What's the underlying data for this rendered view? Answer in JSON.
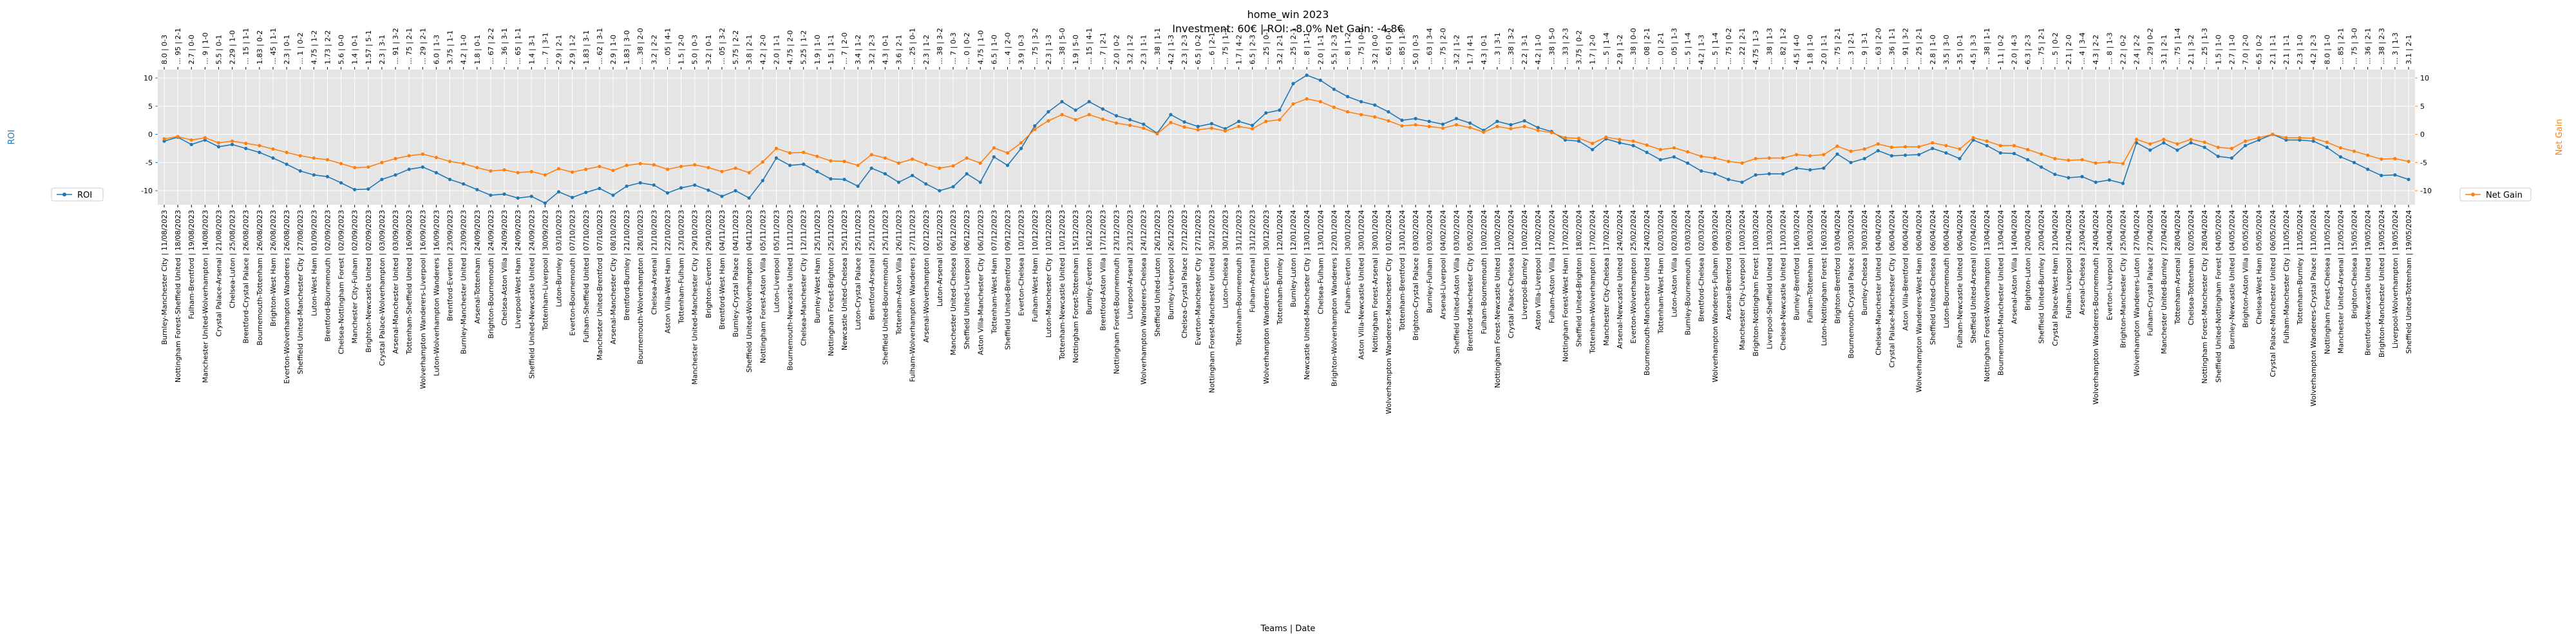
{
  "chart_data": {
    "type": "line",
    "title_line1": "home_win 2023",
    "title_line2": "Investment: 60€ | ROI: -8.0% Net Gain: -4.8€",
    "xlabel": "Teams | Date",
    "ylabel_left": "ROI",
    "ylabel_right": "Net Gain",
    "ylim_left": [
      -12.5,
      11.5
    ],
    "ylim_right": [
      -12.5,
      11.5
    ],
    "yticks_left": [
      -10,
      -5,
      0,
      5,
      10
    ],
    "yticks_right": [
      -10,
      -5,
      0,
      5,
      10
    ],
    "grid": true,
    "legend_left": "bottom-left",
    "legend_right": "bottom-right",
    "colors": {
      "roi": "#1f77b4",
      "net_gain": "#ff7f0e",
      "plot_bg": "#e5e5e5",
      "grid": "#ffffff"
    },
    "categories": [
      "Burnley-Manchester City | 11/08/2023",
      "Nottingham Forest-Sheffield United | 18/08/2023",
      "Fulham-Brentford | 19/08/2023",
      "Manchester United-Wolverhampton | 14/08/2023",
      "Crystal Palace-Arsenal | 21/08/2023",
      "Chelsea-Luton | 25/08/2023",
      "Brentford-Crystal Palace | 26/08/2023",
      "Bournemouth-Tottenham | 26/08/2023",
      "Brighton-West Ham | 26/08/2023",
      "Everton-Wolverhampton Wanderers | 26/08/2023",
      "Sheffield United-Manchester City | 27/08/2023",
      "Luton-West Ham | 01/09/2023",
      "Brentford-Bournemouth | 02/09/2023",
      "Chelsea-Nottingham Forest | 02/09/2023",
      "Manchester City-Fulham | 02/09/2023",
      "Brighton-Newcastle United | 02/09/2023",
      "Crystal Palace-Wolverhampton | 03/09/2023",
      "Arsenal-Manchester United | 03/09/2023",
      "Tottenham-Sheffield United | 16/09/2023",
      "Wolverhampton Wanderers-Liverpool | 16/09/2023",
      "Luton-Wolverhampton Wanderers | 16/09/2023",
      "Brentford-Everton | 23/09/2023",
      "Burnley-Manchester United | 23/09/2023",
      "Arsenal-Tottenham | 24/09/2023",
      "Brighton-Bournemouth | 24/09/2023",
      "Chelsea-Aston Villa | 24/09/2023",
      "Liverpool-West Ham | 24/09/2023",
      "Sheffield United-Newcastle United | 24/09/2023",
      "Tottenham-Liverpool | 30/09/2023",
      "Luton-Burnley | 03/10/2023",
      "Everton-Bournemouth | 07/10/2023",
      "Fulham-Sheffield United | 07/10/2023",
      "Manchester United-Brentford | 07/10/2023",
      "Arsenal-Manchester City | 08/10/2023",
      "Brentford-Burnley | 21/10/2023",
      "Bournemouth-Wolverhampton | 28/10/2023",
      "Chelsea-Arsenal | 21/10/2023",
      "Aston Villa-West Ham | 22/10/2023",
      "Tottenham-Fulham | 23/10/2023",
      "Manchester United-Manchester City | 29/10/2023",
      "Brighton-Everton | 29/10/2023",
      "Brentford-West Ham | 04/11/2023",
      "Burnley-Crystal Palace | 04/11/2023",
      "Sheffield United-Wolverhampton | 04/11/2023",
      "Nottingham Forest-Aston Villa | 05/11/2023",
      "Luton-Liverpool | 05/11/2023",
      "Bournemouth-Newcastle United | 11/11/2023",
      "Chelsea-Manchester City | 12/11/2023",
      "Burnley-West Ham | 25/11/2023",
      "Nottingham Forest-Brighton | 25/11/2023",
      "Newcastle United-Chelsea | 25/11/2023",
      "Luton-Crystal Palace | 25/11/2023",
      "Brentford-Arsenal | 25/11/2023",
      "Sheffield United-Bournemouth | 25/11/2023",
      "Tottenham-Aston Villa | 26/11/2023",
      "Fulham-Wolverhampton Wanderers | 27/11/2023",
      "Arsenal-Wolverhampton | 02/12/2023",
      "Luton-Arsenal | 05/12/2023",
      "Manchester United-Chelsea | 06/12/2023",
      "Sheffield United-Liverpool | 06/12/2023",
      "Aston Villa-Manchester City | 06/12/2023",
      "Tottenham-West Ham | 07/12/2023",
      "Sheffield United-Brentford | 09/12/2023",
      "Everton-Chelsea | 10/12/2023",
      "Fulham-West Ham | 10/12/2023",
      "Luton-Manchester City | 10/12/2023",
      "Tottenham-Newcastle United | 10/12/2023",
      "Nottingham Forest-Tottenham | 15/12/2023",
      "Burnley-Everton | 16/12/2023",
      "Brentford-Aston Villa | 17/12/2023",
      "Nottingham Forest-Bournemouth | 23/12/2023",
      "Liverpool-Arsenal | 23/12/2023",
      "Wolverhampton Wanderers-Chelsea | 24/12/2023",
      "Sheffield United-Luton | 26/12/2023",
      "Burnley-Liverpool | 26/12/2023",
      "Chelsea-Crystal Palace | 27/12/2023",
      "Everton-Manchester City | 27/12/2023",
      "Nottingham Forest-Manchester United | 30/12/2023",
      "Luton-Chelsea | 30/12/2023",
      "Tottenham-Bournemouth | 31/12/2023",
      "Fulham-Arsenal | 31/12/2023",
      "Wolverhampton Wanderers-Everton | 30/12/2023",
      "Tottenham-Burnley | 12/01/2024",
      "Burnley-Luton | 12/01/2024",
      "Newcastle United-Manchester City | 13/01/2024",
      "Chelsea-Fulham | 13/01/2024",
      "Brighton-Wolverhampton Wanderers | 22/01/2024",
      "Fulham-Everton | 30/01/2024",
      "Aston Villa-Newcastle United | 30/01/2024",
      "Nottingham Forest-Arsenal | 30/01/2024",
      "Wolverhampton Wanderers-Manchester City | 01/02/2024",
      "Tottenham-Brentford | 31/01/2024",
      "Brighton-Crystal Palace | 03/02/2024",
      "Burnley-Fulham | 03/02/2024",
      "Arsenal-Liverpool | 04/02/2024",
      "Sheffield United-Aston Villa | 03/02/2024",
      "Brentford-Manchester City | 05/02/2024",
      "Fulham-Bournemouth | 10/02/2024",
      "Nottingham Forest-Newcastle United | 10/02/2024",
      "Crystal Palace-Chelsea | 12/02/2024",
      "Liverpool-Burnley | 10/02/2024",
      "Aston Villa-Liverpool | 12/02/2024",
      "Fulham-Aston Villa | 17/02/2024",
      "Nottingham Forest-West Ham | 17/02/2024",
      "Sheffield United-Brighton | 18/02/2024",
      "Tottenham-Wolverhampton | 17/02/2024",
      "Manchester City-Chelsea | 17/02/2024",
      "Arsenal-Newcastle United | 24/02/2024",
      "Everton-Wolverhampton | 25/02/2024",
      "Bournemouth-Manchester United | 24/02/2024",
      "Tottenham-West Ham | 02/03/2024",
      "Luton-Aston Villa | 02/03/2024",
      "Burnley-Bournemouth | 03/03/2024",
      "Brentford-Chelsea | 02/03/2024",
      "Wolverhampton Wanderers-Fulham | 09/03/2024",
      "Arsenal-Brentford | 09/03/2024",
      "Manchester City-Liverpool | 10/03/2024",
      "Brighton-Nottingham Forest | 10/03/2024",
      "Liverpool-Sheffield United | 13/03/2024",
      "Chelsea-Newcastle United | 11/03/2024",
      "Burnley-Brentford | 16/03/2024",
      "Fulham-Tottenham | 16/03/2024",
      "Luton-Nottingham Forest | 16/03/2024",
      "Brighton-Brentford | 03/04/2024",
      "Bournemouth-Crystal Palace | 30/03/2024",
      "Burnley-Chelsea | 30/03/2024",
      "Chelsea-Manchester United | 04/04/2024",
      "Crystal Palace-Manchester City | 06/04/2024",
      "Aston Villa-Brentford | 06/04/2024",
      "Wolverhampton Wanderers-West Ham | 06/04/2024",
      "Sheffield United-Chelsea | 06/04/2024",
      "Luton-Bournemouth | 06/04/2024",
      "Fulham-Newcastle United | 06/04/2024",
      "Sheffield United-Arsenal | 07/04/2024",
      "Nottingham Forest-Wolverhampton | 13/04/2024",
      "Bournemouth-Manchester United | 13/04/2024",
      "Arsenal-Aston Villa | 14/04/2024",
      "Brighton-Luton | 20/04/2024",
      "Sheffield United-Burnley | 20/04/2024",
      "Crystal Palace-West Ham | 21/04/2024",
      "Fulham-Liverpool | 21/04/2024",
      "Arsenal-Chelsea | 23/04/2024",
      "Wolverhampton Wanderers-Bournemouth | 24/04/2024",
      "Everton-Liverpool | 24/04/2024",
      "Brighton-Manchester City | 25/04/2024",
      "Wolverhampton Wanderers-Luton | 27/04/2024",
      "Fulham-Crystal Palace | 27/04/2024",
      "Manchester United-Burnley | 27/04/2024",
      "Tottenham-Arsenal | 28/04/2024",
      "Chelsea-Tottenham | 02/05/2024",
      "Nottingham Forest-Manchester City | 28/04/2024",
      "Sheffield United-Nottingham Forest | 04/05/2024",
      "Burnley-Newcastle United | 04/05/2024",
      "Brighton-Aston Villa | 05/05/2024",
      "Chelsea-West Ham | 05/05/2024",
      "Crystal Palace-Manchester United | 06/05/2024",
      "Fulham-Manchester City | 11/05/2024",
      "Tottenham-Burnley | 11/05/2024",
      "Wolverhampton Wanderers-Crystal Palace | 11/05/2024",
      "Nottingham Forest-Chelsea | 11/05/2024",
      "Manchester United-Arsenal | 12/05/2024",
      "Brighton-Chelsea | 15/05/2024",
      "Brentford-Newcastle United | 19/05/2024",
      "Brighton-Manchester United | 19/05/2024",
      "Liverpool-Wolverhampton | 19/05/2024",
      "Sheffield United-Tottenham | 19/05/2024"
    ],
    "tick_labels_top": [
      "8.0 | 0-3",
      "... 95 | 2-1",
      "2.7 | 0-0",
      "... 9 | 1-0",
      "5.5 | 0-1",
      "2.29 | 1-0",
      "... 15 | 1-1",
      "1.83 | 0-2",
      "... 45 | 1-1",
      "2.3 | 0-1",
      "... 1 | 0-2",
      "4.75 | 1-2",
      "1.73 | 2-2",
      "5.6 | 0-0",
      "1.4 | 0-1",
      "1.57 | 5-1",
      "2.3 | 3-1",
      "... 91 | 3-2",
      "... 75 | 2-1",
      "... 29 | 2-1",
      "6.0 | 1-3",
      "3.75 | 1-1",
      "4.2 | 1-0",
      "1.8 | 0-1",
      "... 67 | 2-2",
      "... 36 | 3-1",
      "... 65 | 1-1",
      "1.4 | 3-1",
      "... 7 | 3-1",
      "2.9 | 2-1",
      "2.9 | 1-2",
      "1.83 | 3-1",
      "... 62 | 3-1",
      "2.9 | 1-0",
      "1.83 | 3-0",
      "... 38 | 2-0",
      "3.2 | 2-2",
      "... 05 | 4-1",
      "1.5 | 2-0",
      "5.0 | 0-3",
      "3.2 | 0-1",
      "... 05 | 3-2",
      "5.75 | 2-2",
      "3.8 | 2-1",
      "4.2 | 2-0",
      "2.0 | 1-1",
      "4.75 | 2-0",
      "5.25 | 1-2",
      "1.9 | 1-0",
      "1.5 | 1-1",
      "... 7 | 2-0",
      "3.4 | 1-2",
      "3.2 | 2-3",
      "4.3 | 0-1",
      "3.6 | 2-1",
      "... 25 | 0-1",
      "2.3 | 1-2",
      "... 38 | 3-2",
      "... 7 | 0-3",
      "... 0 | 0-2",
      "4.75 | 1-0",
      "6.5 | 1-0",
      "... 4 | 2-0",
      "3.9 | 0-3",
      "... 75 | 3-2",
      "2.3 | 1-3",
      "... 38 | 5-0",
      "1.9 | 5-0",
      "... 15 | 4-1",
      "... 7 | 2-1",
      "2.0 | 0-2",
      "3.2 | 1-2",
      "2.3 | 1-1",
      "... 38 | 1-1",
      "4.2 | 1-3",
      "2.3 | 2-3",
      "6.5 | 0-2",
      "... 6 | 2-1",
      "... 75 | 1-3",
      "1.7 | 4-2",
      "6.5 | 2-3",
      "... 25 | 0-1",
      "3.2 | 2-1",
      "... 25 | 2-1",
      "... 8 | 1-1",
      "2.0 | 1-1",
      "5.5 | 2-3",
      "... 8 | 1-2",
      "... 75 | 0-0",
      "3.2 | 0-0",
      "... 65 | 0-0",
      "... 85 | 1-3",
      "5.0 | 0-3",
      "... 63 | 3-4",
      "... 75 | 2-0",
      "3.2 | 1-2",
      "1.7 | 4-1",
      "4.3 | 0-1",
      "... 3 | 3-1",
      "... 38 | 3-2",
      "2.2 | 3-1",
      "4.2 | 1-0",
      "... 38 | 5-0",
      "... 33 | 2-3",
      "3.75 | 0-2",
      "1.7 | 2-0",
      "... 5 | 1-4",
      "2.9 | 1-2",
      "... 38 | 0-0",
      "... 08 | 2-1",
      "... 0 | 2-1",
      "... 05 | 1-3",
      "... 5 | 1-4",
      "4.2 | 1-3",
      "... 5 | 1-4",
      "... 75 | 0-2",
      "... 22 | 2-1",
      "4.75 | 1-3",
      "... 38 | 1-3",
      "... 82 | 1-2",
      "4.5 | 4-0",
      "1.8 | 1-0",
      "2.0 | 1-1",
      "... 75 | 2-1",
      "... 3 | 2-1",
      "... 9 | 3-1",
      "... 63 | 2-0",
      "... 36 | 1-1",
      "... 91 | 3-2",
      "... 25 | 2-1",
      "2.8 | 1-0",
      "3.5 | 3-0",
      "3.5 | 0-1",
      "4.5 | 3-3",
      "... 38 | 1-1",
      "1.1 | 0-2",
      "2.0 | 4-3",
      "6.3 | 2-3",
      "... 75 | 2-1",
      "... 5 | 0-2",
      "2.1 | 2-0",
      "... 4 | 3-4",
      "4.3 | 2-2",
      "... 8 | 1-3",
      "2.2 | 0-2",
      "2.4 | 2-2",
      "... 29 | 0-2",
      "3.1 | 2-1",
      "... 75 | 1-4",
      "2.1 | 3-2",
      "... 25 | 1-3",
      "1.5 | 1-0",
      "2.7 | 1-0",
      "7.0 | 2-0",
      "6.5 | 0-2",
      "2.1 | 1-1",
      "2.1 | 1-1",
      "2.3 | 1-0",
      "4.2 | 2-3",
      "8.0 | 1-0",
      "... 85 | 2-1",
      "... 75 | 3-0",
      "... 36 | 2-1",
      "... 38 | 2-3",
      "... 3 | 1-3",
      "3.1 | 2-1",
      "... 15 | 0-2",
      "... 3 | 1-2",
      "... 17 | 2-0",
      "... 0 | 0-3"
    ],
    "series": [
      {
        "name": "ROI",
        "axis": "left",
        "color": "#1f77b4",
        "values": [
          -1.2,
          -0.5,
          -1.8,
          -1.0,
          -2.2,
          -1.8,
          -2.5,
          -3.2,
          -4.2,
          -5.3,
          -6.5,
          -7.2,
          -7.5,
          -8.6,
          -9.8,
          -9.7,
          -8.0,
          -7.2,
          -6.2,
          -5.8,
          -6.8,
          -8.0,
          -8.8,
          -9.8,
          -10.8,
          -10.6,
          -11.3,
          -11.0,
          -12.2,
          -10.2,
          -11.2,
          -10.3,
          -9.6,
          -10.8,
          -9.2,
          -8.6,
          -9.0,
          -10.4,
          -9.5,
          -9.0,
          -9.9,
          -11.0,
          -10.0,
          -11.3,
          -8.2,
          -4.2,
          -5.5,
          -5.3,
          -6.6,
          -7.9,
          -8.0,
          -9.2,
          -6.0,
          -7.0,
          -8.5,
          -7.3,
          -8.8,
          -10.0,
          -9.3,
          -7.0,
          -8.5,
          -4.0,
          -5.5,
          -2.5,
          1.5,
          4.0,
          5.8,
          4.3,
          5.8,
          4.5,
          3.3,
          2.6,
          1.8,
          0.2,
          3.5,
          2.2,
          1.4,
          1.9,
          1.0,
          2.3,
          1.6,
          3.8,
          4.3,
          9.0,
          10.5,
          9.6,
          8.0,
          6.7,
          5.8,
          5.2,
          4.0,
          2.5,
          2.8,
          2.3,
          1.8,
          2.8,
          2.0,
          0.7,
          2.3,
          1.7,
          2.4,
          1.2,
          0.5,
          -1.0,
          -1.2,
          -2.7,
          -0.8,
          -1.5,
          -2.0,
          -3.2,
          -4.5,
          -4.0,
          -5.1,
          -6.5,
          -7.0,
          -8.0,
          -8.5,
          -7.2,
          -7.0,
          -7.0,
          -6.0,
          -6.3,
          -6.0,
          -3.5,
          -5.0,
          -4.3,
          -2.9,
          -3.8,
          -3.7,
          -3.6,
          -2.5,
          -3.3,
          -4.3,
          -1.0,
          -2.0,
          -3.3,
          -3.4,
          -4.5,
          -5.8,
          -7.1,
          -7.7,
          -7.5,
          -8.5,
          -8.1,
          -8.7,
          -1.5,
          -2.8,
          -1.5,
          -2.8,
          -1.5,
          -2.3,
          -3.9,
          -4.2,
          -2.0,
          -1.0,
          0.0,
          -1.0,
          -1.0,
          -1.2,
          -2.3,
          -4.0,
          -5.0,
          -6.2,
          -7.3,
          -7.2,
          -8.0
        ],
        "show_markers": true
      },
      {
        "name": "Net Gain",
        "axis": "right",
        "color": "#ff7f0e",
        "values": [
          -0.8,
          -0.4,
          -1.0,
          -0.6,
          -1.5,
          -1.2,
          -1.6,
          -2.0,
          -2.6,
          -3.2,
          -3.8,
          -4.2,
          -4.5,
          -5.2,
          -5.9,
          -5.8,
          -5.0,
          -4.3,
          -3.8,
          -3.5,
          -4.1,
          -4.8,
          -5.2,
          -5.9,
          -6.5,
          -6.3,
          -6.8,
          -6.6,
          -7.2,
          -6.1,
          -6.7,
          -6.2,
          -5.7,
          -6.4,
          -5.5,
          -5.2,
          -5.4,
          -6.2,
          -5.7,
          -5.4,
          -5.9,
          -6.6,
          -6.0,
          -6.8,
          -4.9,
          -2.5,
          -3.3,
          -3.2,
          -3.9,
          -4.7,
          -4.8,
          -5.5,
          -3.6,
          -4.2,
          -5.1,
          -4.4,
          -5.3,
          -6.0,
          -5.6,
          -4.2,
          -5.1,
          -2.4,
          -3.3,
          -1.5,
          0.9,
          2.4,
          3.5,
          2.6,
          3.5,
          2.7,
          2.0,
          1.6,
          1.1,
          0.1,
          2.1,
          1.3,
          0.8,
          1.1,
          0.6,
          1.4,
          1.0,
          2.3,
          2.6,
          5.4,
          6.3,
          5.8,
          4.8,
          4.0,
          3.5,
          3.1,
          2.4,
          1.5,
          1.7,
          1.4,
          1.1,
          1.7,
          1.2,
          0.4,
          1.4,
          1.0,
          1.4,
          0.7,
          0.3,
          -0.6,
          -0.7,
          -1.6,
          -0.5,
          -0.9,
          -1.2,
          -1.9,
          -2.7,
          -2.4,
          -3.1,
          -3.9,
          -4.2,
          -4.8,
          -5.1,
          -4.3,
          -4.2,
          -4.2,
          -3.6,
          -3.8,
          -3.6,
          -2.1,
          -3.0,
          -2.6,
          -1.7,
          -2.3,
          -2.2,
          -2.2,
          -1.5,
          -2.0,
          -2.6,
          -0.6,
          -1.2,
          -2.0,
          -2.0,
          -2.7,
          -3.5,
          -4.3,
          -4.6,
          -4.5,
          -5.1,
          -4.9,
          -5.2,
          -0.9,
          -1.7,
          -0.9,
          -1.7,
          -0.9,
          -1.4,
          -2.3,
          -2.5,
          -1.2,
          -0.6,
          0.0,
          -0.6,
          -0.6,
          -0.7,
          -1.4,
          -2.4,
          -3.0,
          -3.7,
          -4.4,
          -4.3,
          -4.8
        ],
        "show_markers": true
      }
    ],
    "legend": [
      {
        "label": "ROI",
        "color": "#1f77b4",
        "position": "bottom-left"
      },
      {
        "label": "Net Gain",
        "color": "#ff7f0e",
        "position": "bottom-right"
      }
    ]
  }
}
